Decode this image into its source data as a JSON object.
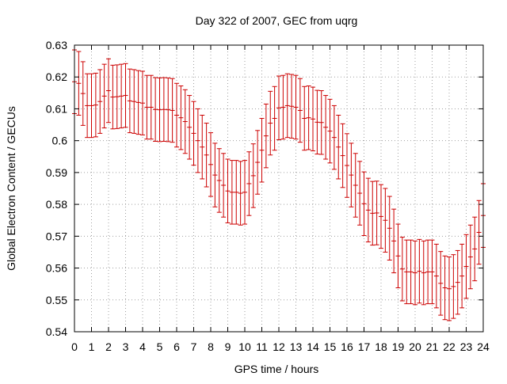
{
  "chart_data": {
    "type": "line",
    "title": "Day 322 of 2007, GEC from uqrg",
    "xlabel": "GPS time / hours",
    "ylabel": "Global Electron Content / GECUs",
    "xlim": [
      0,
      24
    ],
    "ylim": [
      0.54,
      0.63
    ],
    "xticks": [
      0,
      1,
      2,
      3,
      4,
      5,
      6,
      7,
      8,
      9,
      10,
      11,
      12,
      13,
      14,
      15,
      16,
      17,
      18,
      19,
      20,
      21,
      22,
      23,
      24
    ],
    "xtick_labels": [
      "0",
      "1",
      "2",
      "3",
      "4",
      "5",
      "6",
      "7",
      "8",
      "9",
      "10",
      "11",
      "12",
      "13",
      "14",
      "15",
      "16",
      "17",
      "18",
      "19",
      "20",
      "21",
      "22",
      "23",
      "24"
    ],
    "yticks": [
      0.54,
      0.55,
      0.56,
      0.57,
      0.58,
      0.59,
      0.6,
      0.61,
      0.62,
      0.63
    ],
    "ytick_labels": [
      "0.54",
      "0.55",
      "0.56",
      "0.57",
      "0.58",
      "0.59",
      "0.6",
      "0.61",
      "0.62",
      "0.63"
    ],
    "grid": true,
    "legend": "none",
    "error_half_width": 0.01,
    "series": [
      {
        "style": "error-bars",
        "color": "#cc0000",
        "x": [
          0,
          0.25,
          0.5,
          0.75,
          1,
          1.25,
          1.5,
          1.75,
          2,
          2.25,
          2.5,
          2.75,
          3,
          3.25,
          3.5,
          3.75,
          4,
          4.25,
          4.5,
          4.75,
          5,
          5.25,
          5.5,
          5.75,
          6,
          6.25,
          6.5,
          6.75,
          7,
          7.25,
          7.5,
          7.75,
          8,
          8.25,
          8.5,
          8.75,
          9,
          9.25,
          9.5,
          9.75,
          10,
          10.25,
          10.5,
          10.75,
          11,
          11.25,
          11.5,
          11.75,
          12,
          12.25,
          12.5,
          12.75,
          13,
          13.25,
          13.5,
          13.75,
          14,
          14.25,
          14.5,
          14.75,
          15,
          15.25,
          15.5,
          15.75,
          16,
          16.25,
          16.5,
          16.75,
          17,
          17.25,
          17.5,
          17.75,
          18,
          18.25,
          18.5,
          18.75,
          19,
          19.25,
          19.5,
          19.75,
          20,
          20.25,
          20.5,
          20.75,
          21,
          21.25,
          21.5,
          21.75,
          22,
          22.25,
          22.5,
          22.75,
          23,
          23.25,
          23.5,
          23.75,
          24
        ],
        "y": [
          0.6185,
          0.618,
          0.6148,
          0.611,
          0.611,
          0.6112,
          0.6123,
          0.614,
          0.6157,
          0.6137,
          0.6138,
          0.614,
          0.6142,
          0.6125,
          0.6123,
          0.612,
          0.6118,
          0.6105,
          0.6105,
          0.6098,
          0.6097,
          0.6098,
          0.6097,
          0.6095,
          0.608,
          0.6072,
          0.606,
          0.6042,
          0.6023,
          0.6,
          0.598,
          0.5955,
          0.5925,
          0.5892,
          0.5875,
          0.586,
          0.5842,
          0.5838,
          0.5838,
          0.5835,
          0.5838,
          0.5865,
          0.589,
          0.5932,
          0.597,
          0.6015,
          0.6055,
          0.607,
          0.6103,
          0.6105,
          0.611,
          0.6108,
          0.6105,
          0.6095,
          0.607,
          0.6072,
          0.6068,
          0.6058,
          0.6057,
          0.6042,
          0.603,
          0.601,
          0.598,
          0.5953,
          0.5922,
          0.5892,
          0.586,
          0.5835,
          0.5802,
          0.5782,
          0.5772,
          0.5773,
          0.5762,
          0.575,
          0.5725,
          0.5685,
          0.5638,
          0.5597,
          0.5588,
          0.5588,
          0.5585,
          0.559,
          0.5585,
          0.5588,
          0.5588,
          0.5575,
          0.5552,
          0.5538,
          0.5535,
          0.5542,
          0.5555,
          0.5575,
          0.5605,
          0.5635,
          0.566,
          0.5712,
          0.5765
        ]
      }
    ]
  }
}
